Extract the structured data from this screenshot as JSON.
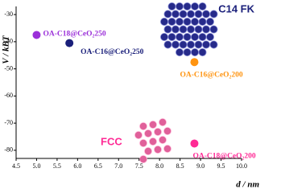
{
  "chart_data": {
    "type": "scatter",
    "xlabel": "d / nm",
    "ylabel": "V / kBT",
    "xlim": [
      4.5,
      10.0
    ],
    "ylim": [
      -83,
      -27
    ],
    "xticks": [
      4.5,
      {
        "value": 5.0,
        "label": "5.0"
      },
      5.5,
      {
        "value": 6.0,
        "label": "6.0"
      },
      6.5,
      {
        "value": 7.0,
        "label": "7.0"
      },
      7.5,
      {
        "value": 8.0,
        "label": "8.0"
      },
      8.5,
      {
        "value": 9.0,
        "label": "9.0"
      },
      9.5,
      {
        "value": 10.0,
        "label": "10.0"
      }
    ],
    "yticks": [
      -30,
      -40,
      -50,
      -60,
      -70,
      -80
    ],
    "annotations": [
      "C14 FK",
      "FCC"
    ],
    "series": [
      {
        "name": "OA-C18@CeO₂250",
        "color": "#9b30d9",
        "x": [
          5.0
        ],
        "values": [
          -37.5
        ]
      },
      {
        "name": "OA-C16@CeO₂250",
        "color": "#1a1f7a",
        "x": [
          5.8
        ],
        "values": [
          -40.5
        ]
      },
      {
        "name": "OA-C16@CeO₂200",
        "color": "#ff9410",
        "x": [
          8.85
        ],
        "values": [
          -47.5
        ]
      },
      {
        "name": "OA-C18@CeO₂200",
        "color": "#ff2a95",
        "x": [
          8.85
        ],
        "values": [
          -77.5
        ]
      }
    ]
  }
}
